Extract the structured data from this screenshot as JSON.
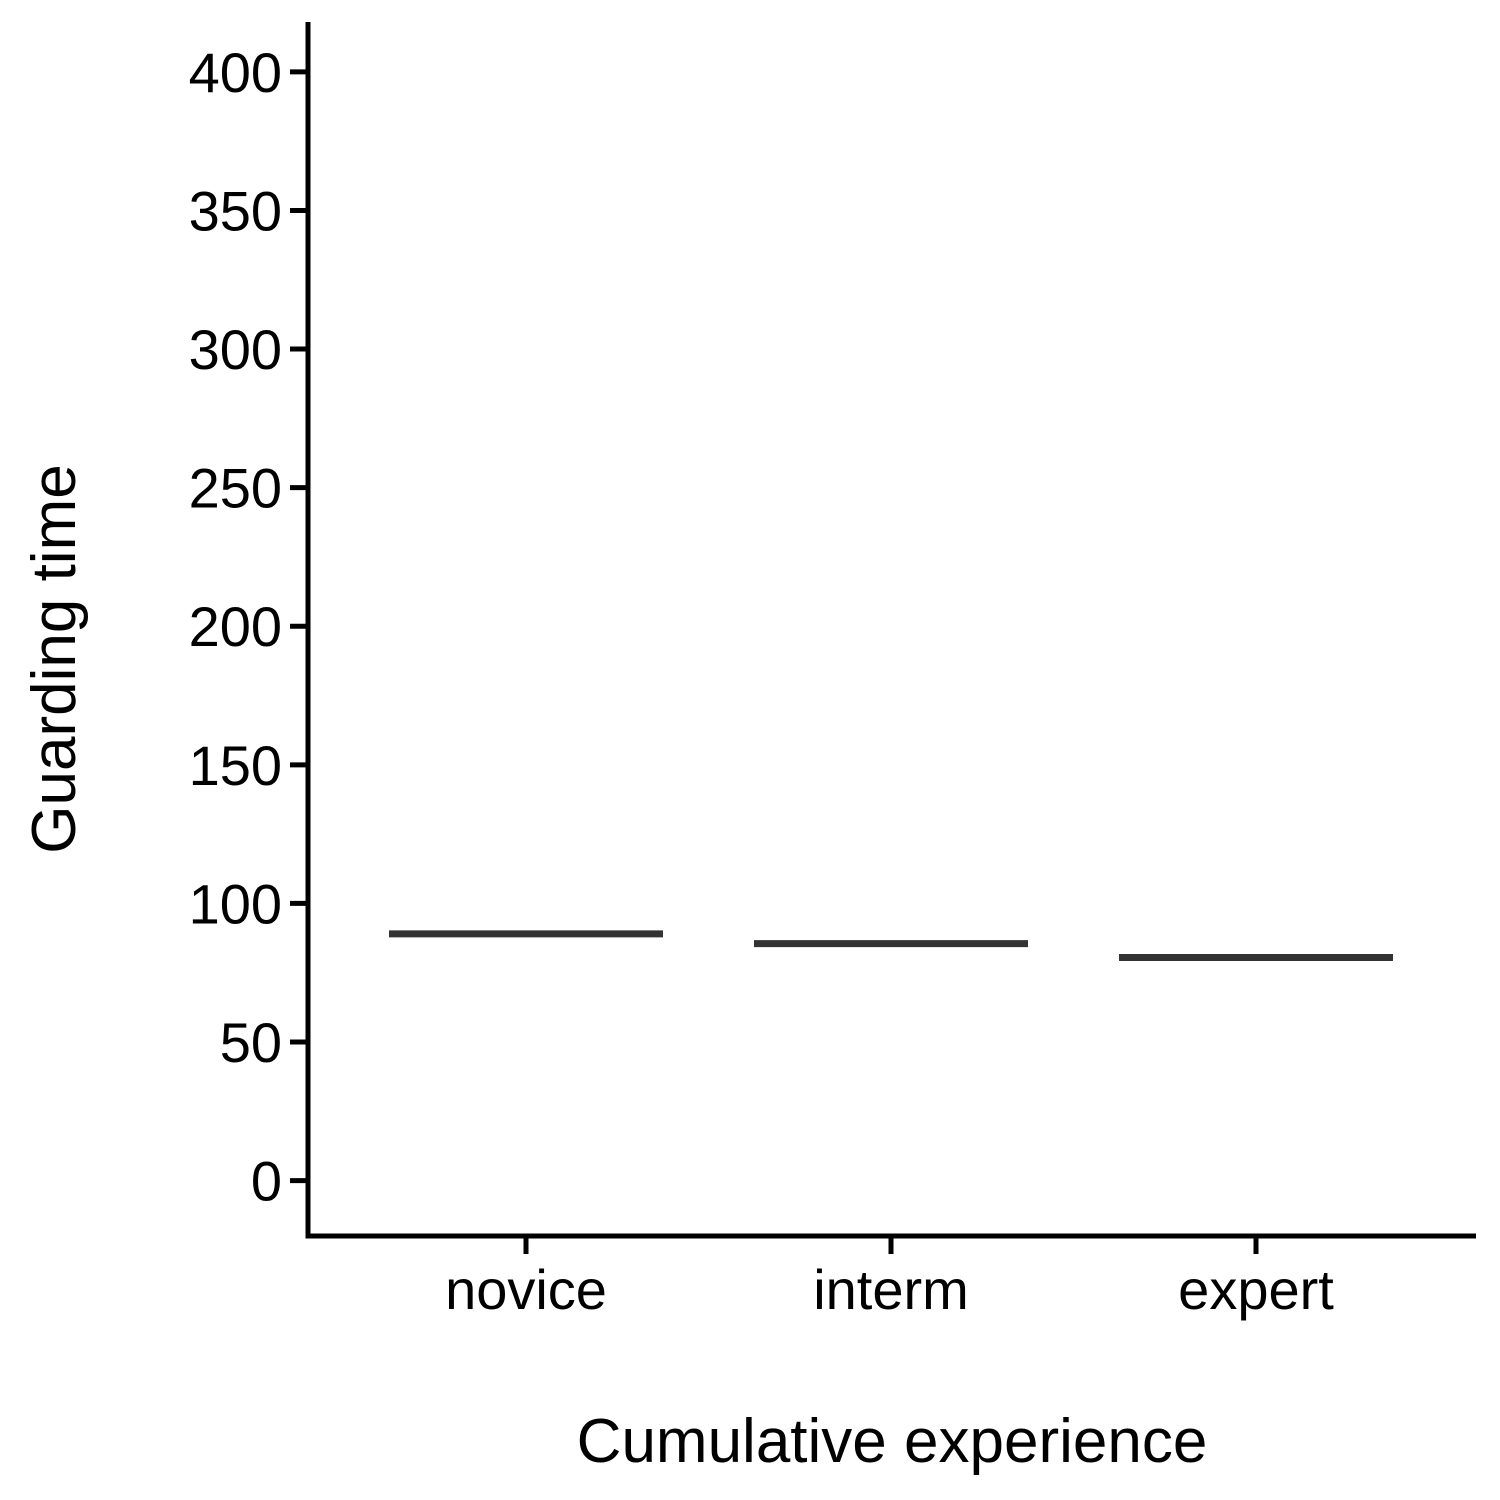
{
  "chart_data": {
    "type": "bar",
    "xlabel": "Cumulative experience",
    "ylabel": "Guarding time",
    "categories": [
      "novice",
      "interm",
      "expert"
    ],
    "values": [
      89,
      85.5,
      80.5
    ],
    "ylim": [
      -20,
      418
    ],
    "yticks": [
      0,
      50,
      100,
      150,
      200,
      250,
      300,
      350,
      400
    ],
    "grid": false,
    "legend": "none",
    "mark_color": "#333333"
  }
}
